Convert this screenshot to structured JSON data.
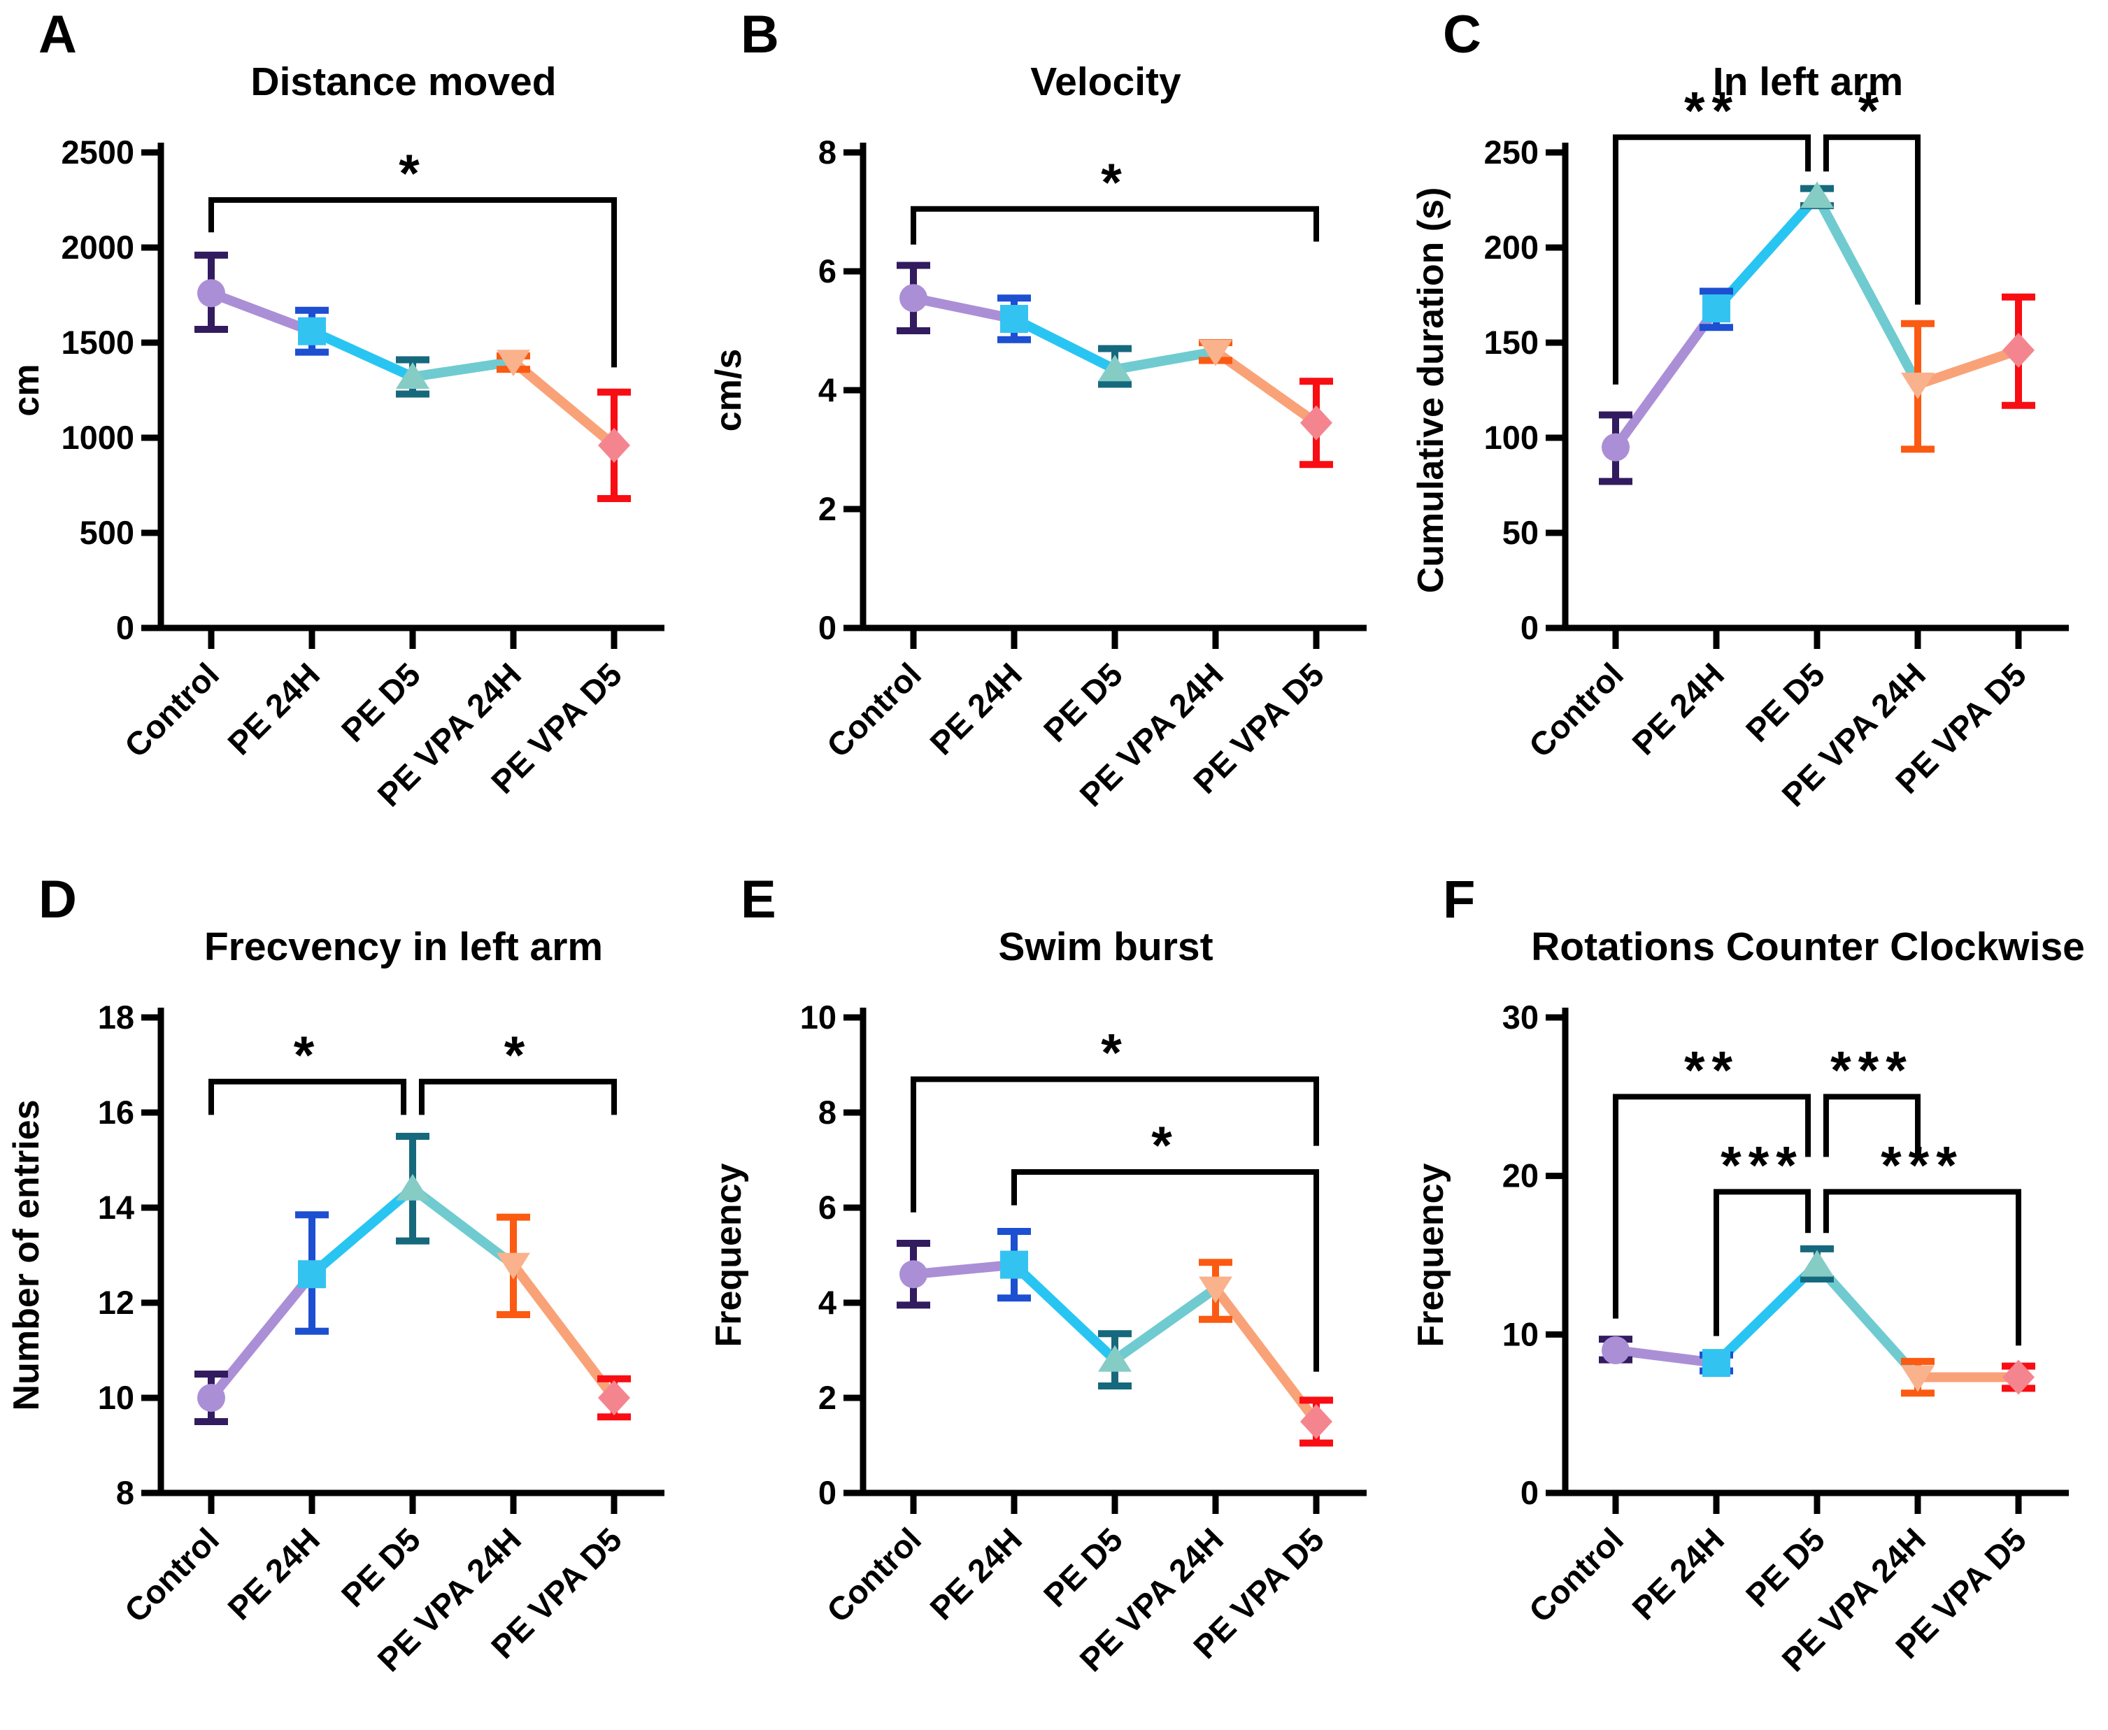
{
  "figure": {
    "background": "#ffffff",
    "axis_color": "#000000",
    "text_color": "#000000"
  },
  "style": {
    "marker_shapes": [
      "circle",
      "square",
      "triangle-up",
      "triangle-down",
      "diamond"
    ],
    "marker_colors": [
      "#AB8FD6",
      "#33C3F0",
      "#85CCC5",
      "#F9B28B",
      "#F4858F"
    ],
    "error_colors": [
      "#321B5E",
      "#1D4FD1",
      "#16697D",
      "#FB5A13",
      "#F80D13"
    ],
    "segment_colors": [
      "#AB8FD6",
      "#29C5F2",
      "#6FCBD0",
      "#F9A278"
    ]
  },
  "chart_data": [
    {
      "type": "line+errorbar",
      "panel_label": "A",
      "title": "Distance moved",
      "ylabel": "cm",
      "ylim": [
        0,
        2500
      ],
      "yticks": [
        0,
        500,
        1000,
        1500,
        2000,
        2500
      ],
      "categories": [
        "Control",
        "PE 24H",
        "PE D5",
        "PE VPA 24H",
        "PE VPA D5"
      ],
      "values": [
        1760,
        1560,
        1320,
        1400,
        960
      ],
      "err_lo": [
        1570,
        1450,
        1230,
        1360,
        680
      ],
      "err_hi": [
        1960,
        1670,
        1410,
        1430,
        1240
      ],
      "significance": [
        {
          "from": 0,
          "to": 4,
          "from_group": "Control",
          "to_group": "PE VPA D5",
          "label": "*",
          "bar_y": 2250,
          "drop_from_y": 2080,
          "drop_to_y": 1370,
          "from_x_offset": 0,
          "to_x_offset": 0
        }
      ]
    },
    {
      "type": "line+errorbar",
      "panel_label": "B",
      "title": "Velocity",
      "ylabel": "cm/s",
      "ylim": [
        0,
        8
      ],
      "yticks": [
        0,
        2,
        4,
        6,
        8
      ],
      "categories": [
        "Control",
        "PE 24H",
        "PE D5",
        "PE VPA 24H",
        "PE VPA D5"
      ],
      "values": [
        5.55,
        5.2,
        4.35,
        4.65,
        3.45
      ],
      "err_lo": [
        5.0,
        4.85,
        4.1,
        4.5,
        2.75
      ],
      "err_hi": [
        6.1,
        5.55,
        4.7,
        4.8,
        4.15
      ],
      "significance": [
        {
          "from": 0,
          "to": 4,
          "from_group": "Control",
          "to_group": "PE VPA D5",
          "label": "*",
          "bar_y": 7.05,
          "drop_from_y": 6.45,
          "drop_to_y": 6.5,
          "from_x_offset": 0,
          "to_x_offset": 0
        }
      ]
    },
    {
      "type": "line+errorbar",
      "panel_label": "C",
      "title": "In left arm",
      "ylabel": "Cumulative duration (s)",
      "ylim": [
        0,
        250
      ],
      "yticks": [
        0,
        50,
        100,
        150,
        200,
        250
      ],
      "categories": [
        "Control",
        "PE 24H",
        "PE D5",
        "PE VPA 24H",
        "PE VPA D5"
      ],
      "values": [
        95,
        168,
        227,
        128,
        146
      ],
      "err_lo": [
        77,
        158,
        222,
        94,
        117
      ],
      "err_hi": [
        112,
        177,
        231,
        160,
        174
      ],
      "significance": [
        {
          "from": 0,
          "to": 2,
          "from_group": "Control",
          "to_group": "PE D5",
          "label": "**",
          "bar_y": 258,
          "drop_from_y": 128,
          "drop_to_y": 240,
          "from_x_offset": 0,
          "to_x_offset": -0.09
        },
        {
          "from": 2,
          "to": 3,
          "from_group": "PE D5",
          "to_group": "PE VPA 24H",
          "label": "*",
          "bar_y": 258,
          "drop_from_y": 240,
          "drop_to_y": 170,
          "from_x_offset": 0.09,
          "to_x_offset": 0
        }
      ]
    },
    {
      "type": "line+errorbar",
      "panel_label": "D",
      "title": "Frecvency in left arm",
      "ylabel": "Number of entries",
      "ylim": [
        8,
        18
      ],
      "yticks": [
        8,
        10,
        12,
        14,
        16,
        18
      ],
      "categories": [
        "Control",
        "PE 24H",
        "PE D5",
        "PE VPA 24H",
        "PE VPA D5"
      ],
      "values": [
        10.0,
        12.6,
        14.4,
        12.8,
        10.0
      ],
      "err_lo": [
        9.5,
        11.4,
        13.3,
        11.75,
        9.6
      ],
      "err_hi": [
        10.5,
        13.85,
        15.5,
        13.8,
        10.4
      ],
      "significance": [
        {
          "from": 0,
          "to": 2,
          "from_group": "Control",
          "to_group": "PE D5",
          "label": "*",
          "bar_y": 16.65,
          "drop_from_y": 15.95,
          "drop_to_y": 15.95,
          "from_x_offset": 0,
          "to_x_offset": -0.09
        },
        {
          "from": 2,
          "to": 4,
          "from_group": "PE D5",
          "to_group": "PE VPA D5",
          "label": "*",
          "bar_y": 16.65,
          "drop_from_y": 15.95,
          "drop_to_y": 15.95,
          "from_x_offset": 0.09,
          "to_x_offset": 0
        }
      ]
    },
    {
      "type": "line+errorbar",
      "panel_label": "E",
      "title": "Swim burst",
      "ylabel": "Frequency",
      "ylim": [
        0,
        10
      ],
      "yticks": [
        0,
        2,
        4,
        6,
        8,
        10
      ],
      "categories": [
        "Control",
        "PE 24H",
        "PE D5",
        "PE VPA 24H",
        "PE VPA D5"
      ],
      "values": [
        4.6,
        4.8,
        2.8,
        4.3,
        1.5
      ],
      "err_lo": [
        3.95,
        4.1,
        2.25,
        3.65,
        1.05
      ],
      "err_hi": [
        5.25,
        5.5,
        3.35,
        4.85,
        1.95
      ],
      "significance": [
        {
          "from": 0,
          "to": 4,
          "from_group": "Control",
          "to_group": "PE VPA D5",
          "label": "*",
          "bar_y": 8.7,
          "drop_from_y": 5.9,
          "drop_to_y": 7.3,
          "from_x_offset": 0,
          "to_x_offset": 0
        },
        {
          "from": 1,
          "to": 4,
          "from_group": "PE 24H",
          "to_group": "PE VPA D5",
          "label": "*",
          "bar_y": 6.75,
          "drop_from_y": 6.05,
          "drop_to_y": 2.55,
          "from_x_offset": 0,
          "to_x_offset": 0
        }
      ]
    },
    {
      "type": "line+errorbar",
      "panel_label": "F",
      "title": "Rotations Counter Clockwise",
      "ylabel": "Frequency",
      "ylim": [
        0,
        30
      ],
      "yticks": [
        0,
        10,
        20,
        30
      ],
      "categories": [
        "Control",
        "PE 24H",
        "PE D5",
        "PE VPA 24H",
        "PE VPA D5"
      ],
      "values": [
        9.0,
        8.2,
        14.4,
        7.3,
        7.3
      ],
      "err_lo": [
        8.4,
        7.7,
        13.5,
        6.3,
        6.6
      ],
      "err_hi": [
        9.7,
        8.7,
        15.4,
        8.3,
        8.0
      ],
      "significance": [
        {
          "from": 0,
          "to": 2,
          "from_group": "Control",
          "to_group": "PE D5",
          "label": "**",
          "bar_y": 25.0,
          "drop_from_y": 11.0,
          "drop_to_y": 21.2,
          "from_x_offset": 0,
          "to_x_offset": -0.09
        },
        {
          "from": 2,
          "to": 3,
          "from_group": "PE D5",
          "to_group": "PE VPA 24H",
          "label": "***",
          "bar_y": 25.0,
          "drop_from_y": 21.2,
          "drop_to_y": 21.2,
          "from_x_offset": 0.09,
          "to_x_offset": 0
        },
        {
          "from": 1,
          "to": 2,
          "from_group": "PE 24H",
          "to_group": "PE D5",
          "label": "***",
          "bar_y": 19.0,
          "drop_from_y": 9.9,
          "drop_to_y": 16.4,
          "from_x_offset": 0,
          "to_x_offset": -0.09
        },
        {
          "from": 2,
          "to": 4,
          "from_group": "PE D5",
          "to_group": "PE VPA D5",
          "label": "***",
          "bar_y": 19.0,
          "drop_from_y": 16.4,
          "drop_to_y": 9.3,
          "from_x_offset": 0.09,
          "to_x_offset": 0
        }
      ]
    }
  ]
}
